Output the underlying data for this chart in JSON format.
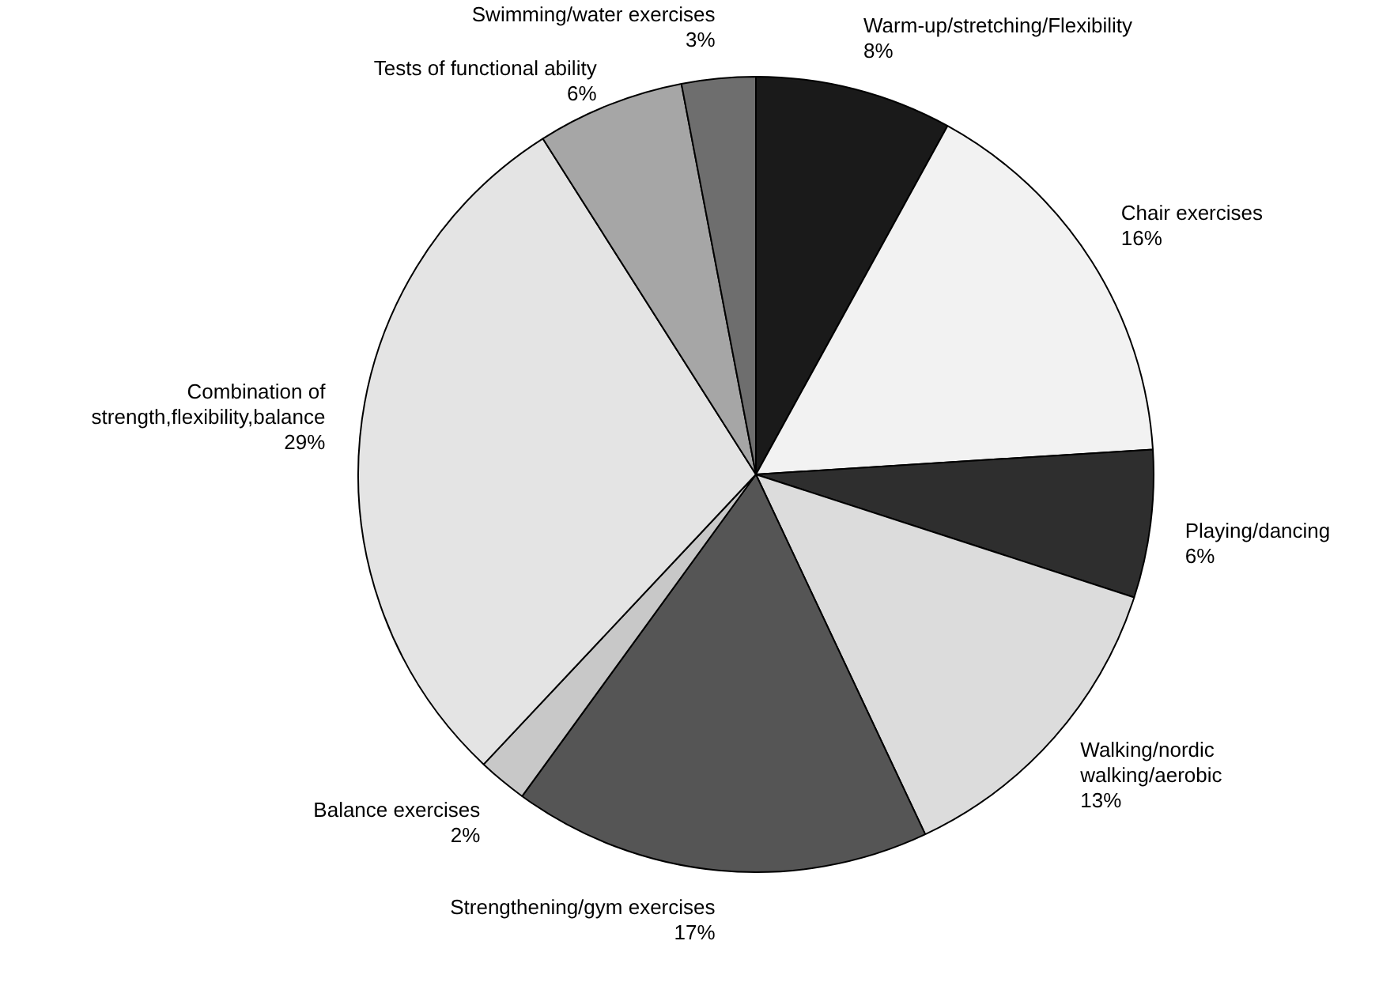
{
  "chart_data": {
    "type": "pie",
    "categories": [
      "Warm-up/stretching/Flexibility",
      "Chair exercises",
      "Playing/dancing",
      "Walking/nordic\nwalking/aerobic",
      "Strengthening/gym exercises",
      "Balance exercises",
      "Combination of\nstrength,flexibility,balance",
      "Tests of functional ability",
      "Swimming/water exercises"
    ],
    "values": [
      8,
      16,
      6,
      13,
      17,
      2,
      29,
      6,
      3
    ],
    "value_labels": [
      "8%",
      "16%",
      "6%",
      "13%",
      "17%",
      "2%",
      "29%",
      "6%",
      "3%"
    ],
    "colors": [
      "#1a1a1a",
      "#f2f2f2",
      "#2e2e2e",
      "#dcdcdc",
      "#555555",
      "#c8c8c8",
      "#e4e4e4",
      "#a6a6a6",
      "#6e6e6e"
    ],
    "legend": false
  }
}
